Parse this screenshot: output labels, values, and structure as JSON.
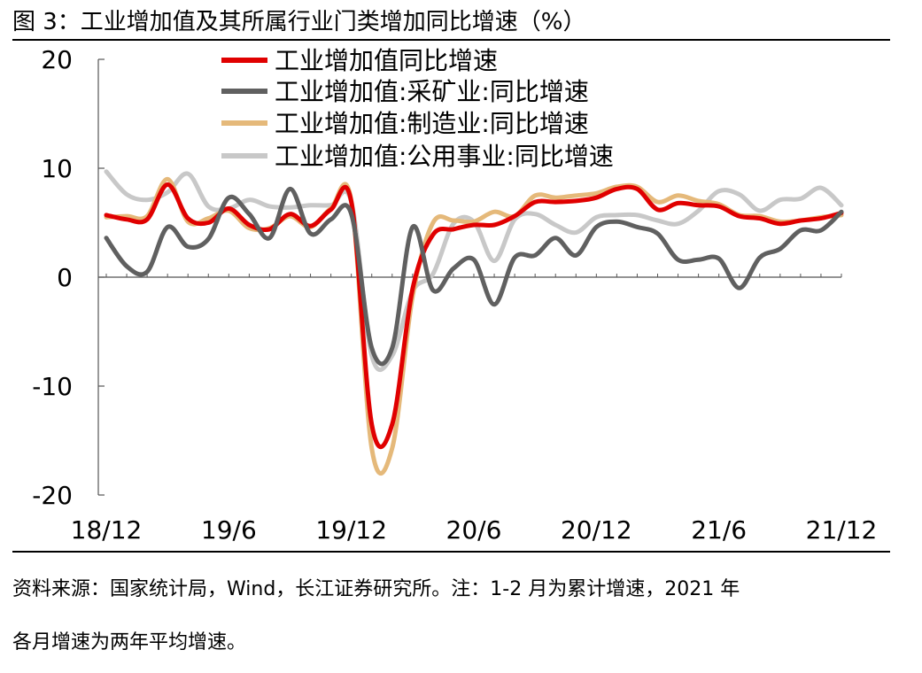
{
  "title": "图 3：工业增加值及其所属行业门类增加同比增速（%）",
  "footnote": {
    "line1": "资料来源：国家统计局，Wind，长江证券研究所。注：1-2 月为累计增速，2021 年",
    "line2": "各月增速为两年平均增速。"
  },
  "chart_data": {
    "type": "line",
    "title": "工业增加值及其所属行业门类增加同比增速（%）",
    "xlabel": "",
    "ylabel": "",
    "ylim": [
      -20,
      20
    ],
    "yticks": [
      "20",
      "10",
      "0",
      "-10",
      "-20"
    ],
    "ytick_values": [
      20,
      10,
      0,
      -10,
      -20
    ],
    "xtick_labels": [
      "18/12",
      "19/6",
      "19/12",
      "20/6",
      "20/12",
      "21/6",
      "21/12"
    ],
    "xtick_index": [
      0,
      6,
      12,
      18,
      24,
      30,
      36
    ],
    "categories": [
      "18/12",
      "19/1",
      "19/2",
      "19/3",
      "19/4",
      "19/5",
      "19/6",
      "19/7",
      "19/8",
      "19/9",
      "19/10",
      "19/11",
      "19/12",
      "20/1",
      "20/2",
      "20/3",
      "20/4",
      "20/5",
      "20/6",
      "20/7",
      "20/8",
      "20/9",
      "20/10",
      "20/11",
      "20/12",
      "21/1",
      "21/2",
      "21/3",
      "21/4",
      "21/5",
      "21/6",
      "21/7",
      "21/8",
      "21/9",
      "21/10",
      "21/11",
      "21/12"
    ],
    "legend_position": "top-center",
    "series": [
      {
        "name": "工业增加值同比增速",
        "color": "#e00000",
        "values": [
          5.7,
          5.3,
          5.3,
          8.5,
          5.4,
          5.0,
          6.3,
          4.8,
          4.4,
          5.8,
          4.7,
          6.2,
          6.9,
          -13.5,
          -13.5,
          -1.1,
          3.9,
          4.4,
          4.8,
          4.8,
          5.6,
          6.9,
          6.9,
          7.0,
          7.3,
          8.1,
          8.1,
          6.2,
          6.8,
          6.6,
          6.5,
          5.6,
          5.4,
          4.9,
          5.2,
          5.4,
          5.9
        ]
      },
      {
        "name": "工业增加值:采矿业:同比增速",
        "color": "#606060",
        "values": [
          3.6,
          1.0,
          0.5,
          4.6,
          2.8,
          3.5,
          7.3,
          5.8,
          3.6,
          8.1,
          4.0,
          5.3,
          5.8,
          -6.5,
          -6.5,
          4.6,
          -1.2,
          0.8,
          1.6,
          -2.5,
          1.8,
          2.0,
          3.6,
          2.0,
          4.6,
          5.1,
          4.6,
          4.0,
          1.6,
          1.6,
          1.7,
          -1.0,
          1.8,
          2.6,
          4.3,
          4.3,
          6.0
        ]
      },
      {
        "name": "工业增加值:制造业:同比增速",
        "color": "#e5b97a",
        "values": [
          5.5,
          5.6,
          5.6,
          9.0,
          5.1,
          5.4,
          6.1,
          4.5,
          4.5,
          5.6,
          4.6,
          6.3,
          7.0,
          -15.7,
          -15.7,
          -1.8,
          5.0,
          5.2,
          5.1,
          6.0,
          5.6,
          7.5,
          7.3,
          7.5,
          7.7,
          8.3,
          8.3,
          6.9,
          7.5,
          7.0,
          6.7,
          5.7,
          5.6,
          5.1,
          5.2,
          5.5,
          5.7
        ]
      },
      {
        "name": "工业增加值:公用事业:同比增速",
        "color": "#c8c8c8",
        "values": [
          9.7,
          7.6,
          7.1,
          7.8,
          9.5,
          6.5,
          6.3,
          7.1,
          6.5,
          6.4,
          6.6,
          6.6,
          6.9,
          -7.2,
          -7.2,
          -1.3,
          0.3,
          4.9,
          5.1,
          1.5,
          5.3,
          5.8,
          4.8,
          4.1,
          5.5,
          5.7,
          5.7,
          5.2,
          4.9,
          6.1,
          7.9,
          7.6,
          6.1,
          7.1,
          7.2,
          8.2,
          6.6
        ]
      }
    ]
  }
}
